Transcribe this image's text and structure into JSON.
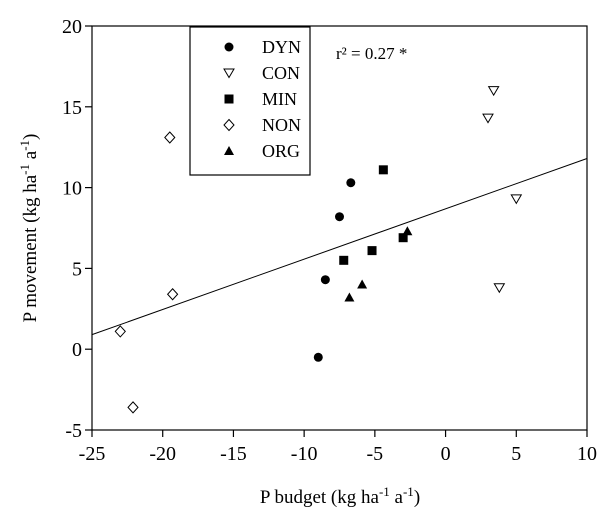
{
  "chart_data": {
    "type": "scatter",
    "title": "",
    "xlabel": "P budget (kg ha",
    "xlabel_sup1": "-1",
    "xlabel_mid": " a",
    "xlabel_sup2": "-1",
    "xlabel_end": ")",
    "ylabel": "P movement (kg ha",
    "ylabel_sup1": "-1",
    "ylabel_mid": " a",
    "ylabel_sup2": "-1",
    "ylabel_end": ")",
    "xlim": [
      -25,
      10
    ],
    "ylim": [
      -5,
      20
    ],
    "xticks": [
      -25,
      -20,
      -15,
      -10,
      -5,
      0,
      5,
      10
    ],
    "yticks": [
      -5,
      0,
      5,
      10,
      15,
      20
    ],
    "xtick_labels": [
      "-25",
      "-20",
      "-15",
      "-10",
      "-5",
      "0",
      "5",
      "10"
    ],
    "ytick_labels": [
      "-5",
      "0",
      "5",
      "10",
      "15",
      "20"
    ],
    "grid": false,
    "legend_position": "top-left",
    "annotation": "r² = 0.27 *",
    "regression_line": {
      "x": [
        -25,
        10
      ],
      "y": [
        0.9,
        11.8
      ]
    },
    "series": [
      {
        "name": "DYN",
        "marker": "filled-circle",
        "points": [
          [
            -9.0,
            -0.5
          ],
          [
            -8.5,
            4.3
          ],
          [
            -7.5,
            8.2
          ],
          [
            -6.7,
            10.3
          ]
        ]
      },
      {
        "name": "CON",
        "marker": "open-triangle-down",
        "points": [
          [
            3.0,
            14.3
          ],
          [
            3.4,
            16.0
          ],
          [
            3.8,
            3.8
          ],
          [
            5.0,
            9.3
          ]
        ]
      },
      {
        "name": "MIN",
        "marker": "filled-square",
        "points": [
          [
            -7.2,
            5.5
          ],
          [
            -5.2,
            6.1
          ],
          [
            -4.4,
            11.1
          ],
          [
            -3.0,
            6.9
          ]
        ]
      },
      {
        "name": "NON",
        "marker": "open-diamond",
        "points": [
          [
            -23.0,
            1.1
          ],
          [
            -22.1,
            -3.6
          ],
          [
            -19.5,
            13.1
          ],
          [
            -19.3,
            3.4
          ]
        ]
      },
      {
        "name": "ORG",
        "marker": "filled-triangle-up",
        "points": [
          [
            -6.8,
            3.2
          ],
          [
            -5.9,
            4.0
          ],
          [
            -2.7,
            7.3
          ]
        ]
      }
    ]
  }
}
